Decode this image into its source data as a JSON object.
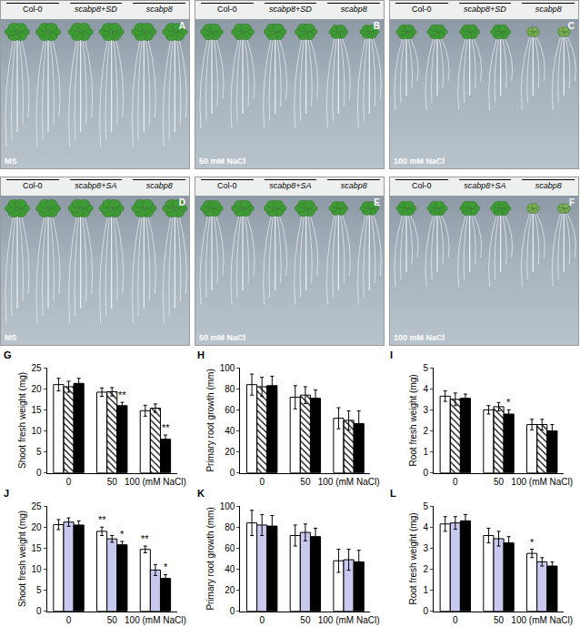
{
  "photo_panels": [
    {
      "label": "A",
      "genotypes": [
        "Col-0",
        "scabp8+SD",
        "scabp8"
      ],
      "medium": "MS"
    },
    {
      "label": "B",
      "genotypes": [
        "Col-0",
        "scabp8+SD",
        "scabp8"
      ],
      "medium": "50 mM NaCl"
    },
    {
      "label": "C",
      "genotypes": [
        "Col-0",
        "scabp8+SD",
        "scabp8"
      ],
      "medium": "100 mM NaCl"
    },
    {
      "label": "D",
      "genotypes": [
        "Col-0",
        "scabp8+SA",
        "scabp8"
      ],
      "medium": "MS"
    },
    {
      "label": "E",
      "genotypes": [
        "Col-0",
        "scabp8+SA",
        "scabp8"
      ],
      "medium": "50 mM NaCl"
    },
    {
      "label": "F",
      "genotypes": [
        "Col-0",
        "scabp8+SA",
        "scabp8"
      ],
      "medium": "100 mM NaCl"
    }
  ],
  "chart_data": [
    {
      "type": "bar",
      "title": "G",
      "y_label": "Shoot fresh weight (mg)",
      "categories": [
        "0",
        "50",
        "100 (mM NaCl)"
      ],
      "ylim": [
        0,
        25
      ],
      "yticks": [
        0,
        5,
        10,
        15,
        20,
        25
      ],
      "grid": false,
      "series": [
        {
          "color": "#ffffff",
          "values": [
            21.0,
            19.2,
            14.8
          ],
          "errors": [
            1.5,
            1.0,
            1.3
          ],
          "significance": [
            null,
            null,
            null
          ]
        },
        {
          "color": "#ffffff",
          "marker": "hatched",
          "values": [
            20.5,
            19.3,
            15.4
          ],
          "errors": [
            1.3,
            1.0,
            1.0
          ],
          "significance": [
            null,
            null,
            null
          ]
        },
        {
          "color": "#000000",
          "values": [
            21.3,
            16.0,
            8.0
          ],
          "errors": [
            1.2,
            0.8,
            1.0
          ],
          "significance": [
            null,
            "**",
            "**"
          ]
        }
      ]
    },
    {
      "type": "bar",
      "title": "H",
      "y_label": "Primary root growth (mm)",
      "categories": [
        "0",
        "50",
        "100 (mM NaCl)"
      ],
      "ylim": [
        0,
        100
      ],
      "yticks": [
        0,
        20,
        40,
        60,
        80,
        100
      ],
      "grid": false,
      "series": [
        {
          "color": "#ffffff",
          "values": [
            84,
            72,
            52
          ],
          "errors": [
            10,
            11,
            10
          ],
          "significance": [
            null,
            null,
            null
          ]
        },
        {
          "color": "#ffffff",
          "marker": "hatched",
          "values": [
            82,
            74,
            50
          ],
          "errors": [
            9,
            8,
            9
          ],
          "significance": [
            null,
            null,
            null
          ]
        },
        {
          "color": "#000000",
          "values": [
            83,
            71,
            47
          ],
          "errors": [
            9,
            8,
            12
          ],
          "significance": [
            null,
            null,
            null
          ]
        }
      ]
    },
    {
      "type": "bar",
      "title": "I",
      "y_label": "Root fresh weight (mg)",
      "categories": [
        "0",
        "50",
        "100 (mM NaCl)"
      ],
      "ylim": [
        0,
        5
      ],
      "yticks": [
        0,
        1,
        2,
        3,
        4,
        5
      ],
      "grid": false,
      "series": [
        {
          "color": "#ffffff",
          "values": [
            3.65,
            3.0,
            2.3
          ],
          "errors": [
            0.25,
            0.2,
            0.25
          ],
          "significance": [
            null,
            null,
            null
          ]
        },
        {
          "color": "#ffffff",
          "marker": "hatched",
          "values": [
            3.5,
            3.15,
            2.3
          ],
          "errors": [
            0.3,
            0.2,
            0.25
          ],
          "significance": [
            null,
            null,
            null
          ]
        },
        {
          "color": "#000000",
          "values": [
            3.55,
            2.8,
            2.0
          ],
          "errors": [
            0.2,
            0.2,
            0.3
          ],
          "significance": [
            null,
            "*",
            null
          ]
        }
      ]
    },
    {
      "type": "bar",
      "title": "J",
      "y_label": "Shoot fresh weight (mg)",
      "categories": [
        "0",
        "50",
        "100 (mM NaCl)"
      ],
      "ylim": [
        0,
        25
      ],
      "yticks": [
        0,
        5,
        10,
        15,
        20,
        25
      ],
      "grid": false,
      "series": [
        {
          "color": "#ffffff",
          "values": [
            20.6,
            19.0,
            14.7
          ],
          "errors": [
            1.2,
            1.0,
            0.8
          ],
          "significance": [
            null,
            "**",
            "**"
          ]
        },
        {
          "color": "#c9c9ef",
          "values": [
            21.2,
            17.2,
            9.8
          ],
          "errors": [
            1.0,
            0.8,
            1.3
          ],
          "significance": [
            null,
            null,
            null
          ]
        },
        {
          "color": "#000000",
          "values": [
            20.5,
            15.8,
            7.8
          ],
          "errors": [
            1.0,
            0.8,
            0.9
          ],
          "significance": [
            null,
            "*",
            "*"
          ]
        }
      ]
    },
    {
      "type": "bar",
      "title": "K",
      "y_label": "Primary root growth (mm)",
      "categories": [
        "0",
        "50",
        "100 (mM NaCl)"
      ],
      "ylim": [
        0,
        100
      ],
      "yticks": [
        0,
        20,
        40,
        60,
        80,
        100
      ],
      "grid": false,
      "series": [
        {
          "color": "#ffffff",
          "values": [
            84,
            72,
            48
          ],
          "errors": [
            12,
            10,
            11
          ],
          "significance": [
            null,
            null,
            null
          ]
        },
        {
          "color": "#c9c9ef",
          "values": [
            82,
            75,
            49
          ],
          "errors": [
            10,
            8,
            10
          ],
          "significance": [
            null,
            null,
            null
          ]
        },
        {
          "color": "#000000",
          "values": [
            81,
            71,
            47
          ],
          "errors": [
            10,
            8,
            11
          ],
          "significance": [
            null,
            null,
            null
          ]
        }
      ]
    },
    {
      "type": "bar",
      "title": "L",
      "y_label": "Root fresh weight (mg)",
      "categories": [
        "0",
        "50",
        "100 (mM NaCl)"
      ],
      "ylim": [
        0,
        5
      ],
      "yticks": [
        0,
        1,
        2,
        3,
        4,
        5
      ],
      "grid": false,
      "series": [
        {
          "color": "#ffffff",
          "values": [
            4.15,
            3.6,
            2.75
          ],
          "errors": [
            0.35,
            0.35,
            0.2
          ],
          "significance": [
            null,
            null,
            "*"
          ]
        },
        {
          "color": "#c9c9ef",
          "values": [
            4.2,
            3.45,
            2.35
          ],
          "errors": [
            0.3,
            0.35,
            0.2
          ],
          "significance": [
            null,
            null,
            null
          ]
        },
        {
          "color": "#000000",
          "values": [
            4.3,
            3.25,
            2.15
          ],
          "errors": [
            0.3,
            0.3,
            0.2
          ],
          "significance": [
            null,
            null,
            null
          ]
        }
      ]
    }
  ]
}
